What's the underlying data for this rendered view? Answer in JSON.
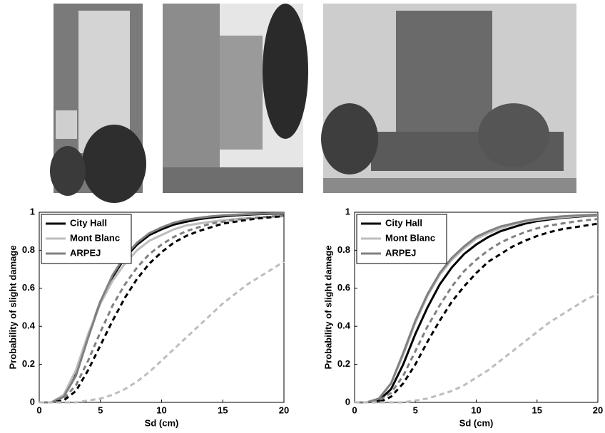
{
  "chart_data": [
    {
      "type": "line",
      "x_label": "Sd (cm)",
      "y_label": "Probability of slight damage",
      "x": [
        0,
        1,
        2,
        3,
        4,
        5,
        6,
        7,
        8,
        9,
        10,
        11,
        12,
        13,
        14,
        15,
        16,
        17,
        18,
        19,
        20
      ],
      "xlim": [
        0,
        20
      ],
      "xticks": [
        0,
        5,
        10,
        15,
        20
      ],
      "ylim": [
        0,
        1
      ],
      "yticks": [
        0,
        0.2,
        0.4,
        0.6,
        0.8,
        1
      ],
      "legend": "upper-left",
      "series": [
        {
          "name": "City Hall",
          "color": "#000000",
          "values": [
            0,
            0,
            0.03,
            0.15,
            0.35,
            0.53,
            0.66,
            0.76,
            0.83,
            0.88,
            0.91,
            0.935,
            0.95,
            0.963,
            0.972,
            0.978,
            0.983,
            0.987,
            0.99,
            0.992,
            0.993
          ]
        },
        {
          "name": "Mont Blanc",
          "color": "#bdbdbd",
          "values": [
            0,
            0,
            0.04,
            0.17,
            0.36,
            0.52,
            0.64,
            0.73,
            0.8,
            0.85,
            0.88,
            0.91,
            0.93,
            0.94,
            0.95,
            0.958,
            0.964,
            0.969,
            0.973,
            0.976,
            0.979
          ]
        },
        {
          "name": "ARPEJ",
          "color": "#808080",
          "values": [
            0,
            0,
            0.03,
            0.14,
            0.34,
            0.53,
            0.67,
            0.77,
            0.84,
            0.89,
            0.92,
            0.945,
            0.96,
            0.97,
            0.978,
            0.983,
            0.987,
            0.99,
            0.992,
            0.994,
            0.995
          ]
        },
        {
          "color": "#808080",
          "dashed": true,
          "values": [
            0,
            0,
            0.02,
            0.09,
            0.22,
            0.37,
            0.51,
            0.62,
            0.71,
            0.78,
            0.83,
            0.87,
            0.9,
            0.92,
            0.94,
            0.95,
            0.96,
            0.967,
            0.973,
            0.978,
            0.982
          ]
        },
        {
          "color": "#000000",
          "dashed": true,
          "values": [
            0,
            0,
            0.01,
            0.06,
            0.17,
            0.3,
            0.43,
            0.55,
            0.65,
            0.73,
            0.79,
            0.84,
            0.875,
            0.9,
            0.92,
            0.94,
            0.95,
            0.96,
            0.968,
            0.974,
            0.98
          ]
        },
        {
          "color": "#bdbdbd",
          "dashed": true,
          "values": [
            0,
            0,
            0,
            0,
            0.01,
            0.02,
            0.04,
            0.07,
            0.11,
            0.16,
            0.22,
            0.28,
            0.34,
            0.4,
            0.46,
            0.52,
            0.57,
            0.62,
            0.66,
            0.7,
            0.74
          ]
        }
      ]
    },
    {
      "type": "line",
      "x_label": "Sd (cm)",
      "y_label": "Probability of slight damage",
      "x": [
        0,
        1,
        2,
        3,
        4,
        5,
        6,
        7,
        8,
        9,
        10,
        11,
        12,
        13,
        14,
        15,
        16,
        17,
        18,
        19,
        20
      ],
      "xlim": [
        0,
        20
      ],
      "xticks": [
        0,
        5,
        10,
        15,
        20
      ],
      "ylim": [
        0,
        1
      ],
      "yticks": [
        0,
        0.2,
        0.4,
        0.6,
        0.8,
        1
      ],
      "legend": "upper-left",
      "series": [
        {
          "name": "City Hall",
          "color": "#000000",
          "values": [
            0,
            0,
            0.01,
            0.07,
            0.2,
            0.36,
            0.5,
            0.62,
            0.71,
            0.78,
            0.83,
            0.87,
            0.9,
            0.92,
            0.94,
            0.953,
            0.962,
            0.97,
            0.975,
            0.98,
            0.983
          ]
        },
        {
          "name": "Mont Blanc",
          "color": "#bdbdbd",
          "values": [
            0,
            0,
            0.02,
            0.1,
            0.25,
            0.42,
            0.56,
            0.67,
            0.75,
            0.81,
            0.86,
            0.89,
            0.915,
            0.935,
            0.95,
            0.96,
            0.967,
            0.973,
            0.978,
            0.982,
            0.985
          ]
        },
        {
          "name": "ARPEJ",
          "color": "#808080",
          "values": [
            0,
            0,
            0.02,
            0.1,
            0.26,
            0.43,
            0.57,
            0.68,
            0.76,
            0.82,
            0.87,
            0.9,
            0.925,
            0.94,
            0.955,
            0.965,
            0.972,
            0.978,
            0.982,
            0.985,
            0.988
          ]
        },
        {
          "color": "#808080",
          "dashed": true,
          "values": [
            0,
            0,
            0.01,
            0.05,
            0.14,
            0.27,
            0.4,
            0.51,
            0.61,
            0.69,
            0.75,
            0.8,
            0.84,
            0.87,
            0.895,
            0.915,
            0.93,
            0.94,
            0.95,
            0.958,
            0.964
          ]
        },
        {
          "color": "#000000",
          "dashed": true,
          "values": [
            0,
            0,
            0,
            0.03,
            0.1,
            0.2,
            0.32,
            0.43,
            0.53,
            0.61,
            0.68,
            0.74,
            0.78,
            0.82,
            0.85,
            0.875,
            0.895,
            0.91,
            0.92,
            0.93,
            0.94
          ]
        },
        {
          "color": "#bdbdbd",
          "dashed": true,
          "values": [
            0,
            0,
            0,
            0,
            0,
            0.01,
            0.02,
            0.04,
            0.06,
            0.09,
            0.13,
            0.17,
            0.22,
            0.27,
            0.32,
            0.37,
            0.42,
            0.46,
            0.5,
            0.54,
            0.57
          ]
        }
      ]
    }
  ]
}
